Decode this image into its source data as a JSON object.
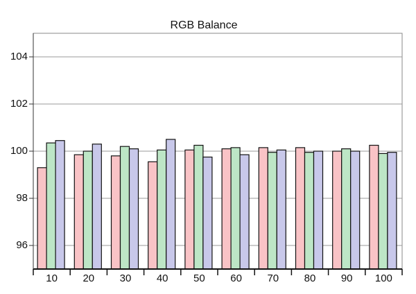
{
  "chart_data": {
    "type": "bar",
    "title": "RGB Balance",
    "categories": [
      "10",
      "20",
      "30",
      "40",
      "50",
      "60",
      "70",
      "80",
      "90",
      "100"
    ],
    "series": [
      {
        "color": "#f9c3c6",
        "values": [
          99.3,
          99.85,
          99.8,
          99.55,
          100.05,
          100.1,
          100.15,
          100.15,
          100.0,
          100.25
        ]
      },
      {
        "color": "#bde6c6",
        "values": [
          100.35,
          100.0,
          100.2,
          100.05,
          100.25,
          100.15,
          99.95,
          99.95,
          100.1,
          99.9
        ]
      },
      {
        "color": "#c8c8ea",
        "values": [
          100.45,
          100.3,
          100.1,
          100.5,
          99.75,
          99.85,
          100.05,
          100.0,
          100.0,
          99.95
        ]
      }
    ],
    "ylim": [
      95,
      105
    ],
    "yticks": [
      96,
      98,
      100,
      102,
      104
    ],
    "grid": true
  }
}
